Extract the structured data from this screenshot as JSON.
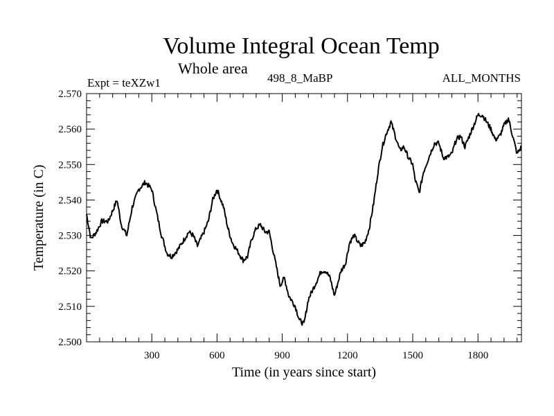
{
  "chart_data": {
    "type": "line",
    "title": "Volume Integral Ocean Temp",
    "subtitle": "Whole area",
    "left_label": "Expt = teXZw1",
    "center_label": "498_8_MaBP",
    "right_label": "ALL_MONTHS",
    "xlabel": "Time (in years since start)",
    "ylabel": "Temperature (in C)",
    "xlim": [
      0,
      2000
    ],
    "ylim": [
      2.5,
      2.57
    ],
    "x_ticks": [
      300,
      600,
      900,
      1200,
      1500,
      1800
    ],
    "x_tick_labels": [
      "300",
      "600",
      "900",
      "1200",
      "1500",
      "1800"
    ],
    "y_ticks": [
      2.5,
      2.51,
      2.52,
      2.53,
      2.54,
      2.55,
      2.56,
      2.57
    ],
    "y_tick_labels": [
      "2.500",
      "2.510",
      "2.520",
      "2.530",
      "2.540",
      "2.550",
      "2.560",
      "2.570"
    ],
    "grid": false,
    "series": [
      {
        "name": "Volume Integral Ocean Temp",
        "x": [
          0,
          20,
          45,
          70,
          100,
          120,
          140,
          160,
          185,
          210,
          240,
          270,
          300,
          320,
          345,
          370,
          390,
          420,
          450,
          470,
          490,
          510,
          540,
          560,
          580,
          600,
          630,
          650,
          670,
          700,
          720,
          740,
          760,
          780,
          800,
          820,
          840,
          870,
          890,
          910,
          930,
          960,
          980,
          1000,
          1020,
          1050,
          1080,
          1100,
          1120,
          1140,
          1170,
          1190,
          1210,
          1230,
          1260,
          1280,
          1300,
          1320,
          1340,
          1360,
          1380,
          1400,
          1420,
          1440,
          1460,
          1480,
          1500,
          1510,
          1530,
          1550,
          1580,
          1600,
          1620,
          1640,
          1660,
          1680,
          1700,
          1720,
          1740,
          1760,
          1780,
          1800,
          1820,
          1840,
          1860,
          1880,
          1900,
          1920,
          1940,
          1960,
          1980,
          2000
        ],
        "y": [
          2.536,
          2.529,
          2.531,
          2.534,
          2.534,
          2.537,
          2.54,
          2.533,
          2.53,
          2.538,
          2.543,
          2.545,
          2.543,
          2.537,
          2.53,
          2.525,
          2.524,
          2.526,
          2.529,
          2.531,
          2.53,
          2.527,
          2.531,
          2.534,
          2.54,
          2.543,
          2.538,
          2.532,
          2.528,
          2.525,
          2.523,
          2.524,
          2.529,
          2.532,
          2.533,
          2.531,
          2.531,
          2.522,
          2.516,
          2.518,
          2.513,
          2.51,
          2.506,
          2.505,
          2.512,
          2.516,
          2.52,
          2.52,
          2.518,
          2.513,
          2.52,
          2.522,
          2.528,
          2.53,
          2.527,
          2.528,
          2.532,
          2.539,
          2.548,
          2.555,
          2.559,
          2.562,
          2.558,
          2.554,
          2.555,
          2.552,
          2.55,
          2.546,
          2.542,
          2.548,
          2.553,
          2.556,
          2.556,
          2.552,
          2.552,
          2.553,
          2.557,
          2.558,
          2.555,
          2.558,
          2.561,
          2.564,
          2.564,
          2.562,
          2.56,
          2.557,
          2.558,
          2.561,
          2.563,
          2.558,
          2.553,
          2.555
        ]
      }
    ]
  }
}
